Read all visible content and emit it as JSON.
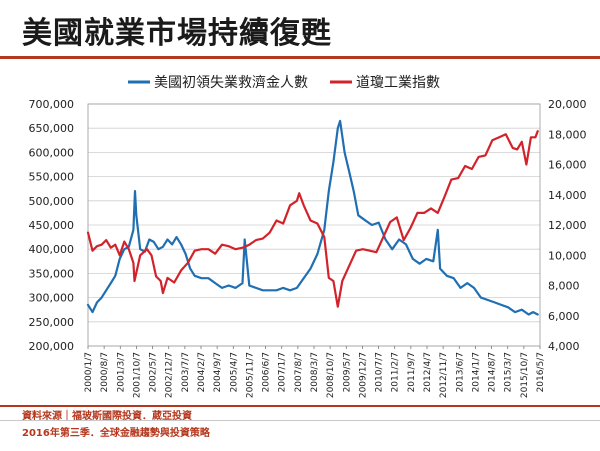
{
  "page": {
    "title": "美國就業市場持續復甦",
    "source": "資料來源｜福玻斯國際投資．葳亞投資",
    "subtitle": "2016年第三季．全球金融趨勢與投資策略"
  },
  "colors": {
    "claims": "#1f6fb2",
    "dow": "#d2232a",
    "accent": "#b5371d",
    "grid": "#cfcfcf"
  },
  "chart_data": {
    "type": "line",
    "title": "",
    "legend_position": "top-center",
    "x_ticks": [
      "2000/1/7",
      "2000/8/7",
      "2001/3/7",
      "2001/10/7",
      "2002/5/7",
      "2002/12/7",
      "2003/7/7",
      "2004/2/7",
      "2004/9/7",
      "2005/4/7",
      "2005/11/7",
      "2006/6/7",
      "2007/1/7",
      "2007/8/7",
      "2008/3/7",
      "2008/10/7",
      "2009/5/7",
      "2009/12/7",
      "2010/7/7",
      "2011/2/7",
      "2011/9/7",
      "2012/4/7",
      "2012/11/7",
      "2013/6/7",
      "2014/1/7",
      "2014/8/7",
      "2015/3/7",
      "2015/10/7",
      "2016/5/7"
    ],
    "left_axis": {
      "ylim": [
        200000,
        700000
      ],
      "ticks": [
        200000,
        250000,
        300000,
        350000,
        400000,
        450000,
        500000,
        550000,
        600000,
        650000,
        700000
      ],
      "tick_labels": [
        "200,000",
        "250,000",
        "300,000",
        "350,000",
        "400,000",
        "450,000",
        "500,000",
        "550,000",
        "600,000",
        "650,000",
        "700,000"
      ]
    },
    "right_axis": {
      "ylim": [
        4000,
        20000
      ],
      "ticks": [
        4000,
        6000,
        8000,
        10000,
        12000,
        14000,
        16000,
        18000,
        20000
      ],
      "tick_labels": [
        "4,000",
        "6,000",
        "8,000",
        "10,000",
        "12,000",
        "14,000",
        "16,000",
        "18,000",
        "20,000"
      ]
    },
    "x_range": [
      "2000-01-07",
      "2016-08-07"
    ],
    "series": [
      {
        "name": "美國初領失業救濟金人數",
        "axis": "left",
        "color": "#1f6fb2",
        "x": [
          "2000-01-07",
          "2000-03-07",
          "2000-05-07",
          "2000-07-07",
          "2000-09-07",
          "2000-11-07",
          "2001-01-07",
          "2001-03-07",
          "2001-05-07",
          "2001-07-07",
          "2001-09-07",
          "2001-09-28",
          "2001-10-15",
          "2001-12-07",
          "2002-02-07",
          "2002-04-07",
          "2002-06-07",
          "2002-08-07",
          "2002-10-07",
          "2002-12-07",
          "2003-02-07",
          "2003-04-07",
          "2003-06-07",
          "2003-08-07",
          "2003-10-07",
          "2003-12-07",
          "2004-03-07",
          "2004-06-07",
          "2004-09-07",
          "2004-12-07",
          "2005-03-07",
          "2005-06-07",
          "2005-09-07",
          "2005-10-07",
          "2005-12-07",
          "2006-03-07",
          "2006-06-07",
          "2006-09-07",
          "2006-12-07",
          "2007-03-07",
          "2007-06-07",
          "2007-09-07",
          "2007-12-07",
          "2008-03-07",
          "2008-06-07",
          "2008-09-07",
          "2008-11-07",
          "2009-01-07",
          "2009-03-07",
          "2009-04-07",
          "2009-06-07",
          "2009-08-07",
          "2009-10-07",
          "2009-12-07",
          "2010-03-07",
          "2010-06-07",
          "2010-09-07",
          "2010-12-07",
          "2011-03-07",
          "2011-06-07",
          "2011-09-07",
          "2011-12-07",
          "2012-03-07",
          "2012-06-07",
          "2012-09-07",
          "2012-11-07",
          "2012-12-07",
          "2013-03-07",
          "2013-06-07",
          "2013-09-07",
          "2013-12-07",
          "2014-03-07",
          "2014-06-07",
          "2014-09-07",
          "2014-12-07",
          "2015-03-07",
          "2015-06-07",
          "2015-09-07",
          "2015-12-07",
          "2016-03-07",
          "2016-05-07",
          "2016-07-07"
        ],
        "values": [
          285000,
          270000,
          290000,
          300000,
          315000,
          330000,
          345000,
          380000,
          400000,
          405000,
          440000,
          520000,
          470000,
          400000,
          395000,
          420000,
          415000,
          400000,
          405000,
          420000,
          410000,
          425000,
          410000,
          390000,
          360000,
          345000,
          340000,
          340000,
          330000,
          320000,
          325000,
          320000,
          330000,
          420000,
          325000,
          320000,
          315000,
          315000,
          315000,
          320000,
          315000,
          320000,
          340000,
          360000,
          390000,
          440000,
          520000,
          580000,
          650000,
          665000,
          600000,
          560000,
          520000,
          470000,
          460000,
          450000,
          455000,
          420000,
          400000,
          420000,
          410000,
          380000,
          370000,
          380000,
          375000,
          440000,
          360000,
          345000,
          340000,
          320000,
          330000,
          320000,
          300000,
          295000,
          290000,
          285000,
          280000,
          270000,
          275000,
          265000,
          270000,
          265000
        ]
      },
      {
        "name": "道瓊工業指數",
        "axis": "right",
        "color": "#d2232a",
        "x": [
          "2000-01-07",
          "2000-03-07",
          "2000-05-07",
          "2000-07-07",
          "2000-09-07",
          "2000-11-07",
          "2001-01-07",
          "2001-03-07",
          "2001-05-07",
          "2001-07-07",
          "2001-09-07",
          "2001-09-21",
          "2001-12-07",
          "2002-03-07",
          "2002-05-07",
          "2002-07-07",
          "2002-09-07",
          "2002-10-07",
          "2002-12-07",
          "2003-03-07",
          "2003-06-07",
          "2003-09-07",
          "2003-12-07",
          "2004-03-07",
          "2004-06-07",
          "2004-09-07",
          "2004-12-07",
          "2005-03-07",
          "2005-06-07",
          "2005-09-07",
          "2005-12-07",
          "2006-03-07",
          "2006-06-07",
          "2006-09-07",
          "2006-12-07",
          "2007-03-07",
          "2007-06-07",
          "2007-09-07",
          "2007-10-07",
          "2007-12-07",
          "2008-03-07",
          "2008-06-07",
          "2008-09-07",
          "2008-11-07",
          "2009-01-07",
          "2009-03-07",
          "2009-05-07",
          "2009-08-07",
          "2009-11-07",
          "2010-02-07",
          "2010-05-07",
          "2010-08-07",
          "2010-11-07",
          "2011-02-07",
          "2011-05-07",
          "2011-08-07",
          "2011-11-07",
          "2012-02-07",
          "2012-05-07",
          "2012-08-07",
          "2012-11-07",
          "2013-02-07",
          "2013-05-07",
          "2013-08-07",
          "2013-11-07",
          "2014-02-07",
          "2014-05-07",
          "2014-08-07",
          "2014-11-07",
          "2015-02-07",
          "2015-05-07",
          "2015-08-07",
          "2015-10-07",
          "2015-12-07",
          "2016-02-07",
          "2016-04-07",
          "2016-06-07",
          "2016-07-07"
        ],
        "values": [
          11500,
          10300,
          10600,
          10700,
          11000,
          10500,
          10700,
          10000,
          10900,
          10400,
          9500,
          8300,
          10000,
          10400,
          10000,
          8600,
          8300,
          7500,
          8500,
          8200,
          9000,
          9500,
          10300,
          10400,
          10400,
          10100,
          10700,
          10600,
          10400,
          10500,
          10700,
          11000,
          11100,
          11500,
          12300,
          12100,
          13300,
          13600,
          14100,
          13300,
          12300,
          12100,
          11200,
          8500,
          8300,
          6600,
          8300,
          9300,
          10300,
          10400,
          10300,
          10200,
          11200,
          12200,
          12500,
          11000,
          11800,
          12800,
          12800,
          13100,
          12800,
          13900,
          15000,
          15100,
          15900,
          15700,
          16500,
          16600,
          17600,
          17800,
          18000,
          17100,
          17000,
          17500,
          16000,
          17800,
          17800,
          18200
        ]
      }
    ]
  }
}
